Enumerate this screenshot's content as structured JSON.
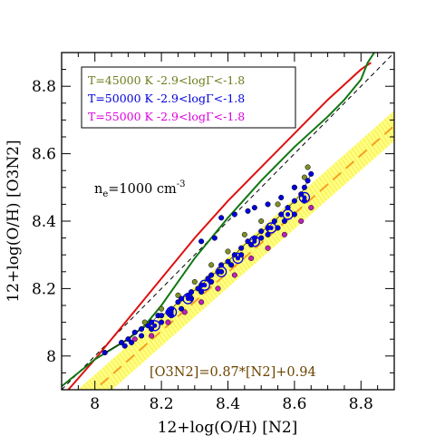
{
  "chart_data": {
    "type": "scatter",
    "title": "",
    "xlabel": "12+log(O/H) [N2]",
    "ylabel": "12+log(O/H) [O3N2]",
    "xlim": [
      7.9,
      8.9
    ],
    "ylim": [
      7.9,
      8.9
    ],
    "x_ticks": [
      "8",
      "8.2",
      "8.4",
      "8.6",
      "8.8"
    ],
    "y_ticks": [
      "8",
      "8.2",
      "8.4",
      "8.6",
      "8.8"
    ],
    "x_tick_values": [
      8.0,
      8.2,
      8.4,
      8.6,
      8.8
    ],
    "y_tick_values": [
      8.0,
      8.2,
      8.4,
      8.6,
      8.8
    ],
    "legend_position": "top-left",
    "legend": [
      {
        "text": "T=45000 K  -2.9<logΓ<-1.8",
        "color": "#6b7d1c"
      },
      {
        "text": "T=50000 K  -2.9<logΓ<-1.8",
        "color": "#0000dd"
      },
      {
        "text": "T=55000 K  -2.9<logΓ<-1.8",
        "color": "#dd00dd"
      }
    ],
    "annotations": {
      "density_prefix": "n",
      "density_sub": "e",
      "density_value": "=1000  cm",
      "density_sup": "-3",
      "fit_label": "[O3N2]=0.87*[N2]+0.94"
    },
    "fit": {
      "slope": 0.87,
      "intercept": 0.94,
      "band_halfwidth": 0.045,
      "color": "#f4a124",
      "band_color": "#ffff66"
    },
    "identity_line": {
      "color": "#000000"
    },
    "red_curve": {
      "color": "#dd1111",
      "points": [
        [
          7.92,
          7.9
        ],
        [
          8.0,
          7.99
        ],
        [
          8.1,
          8.11
        ],
        [
          8.2,
          8.23
        ],
        [
          8.3,
          8.35
        ],
        [
          8.4,
          8.46
        ],
        [
          8.5,
          8.56
        ],
        [
          8.6,
          8.66
        ],
        [
          8.7,
          8.76
        ],
        [
          8.8,
          8.85
        ],
        [
          8.83,
          8.87
        ]
      ]
    },
    "green_curve": {
      "color": "#117711",
      "points": [
        [
          7.9,
          7.91
        ],
        [
          7.95,
          7.95
        ],
        [
          8.0,
          7.99
        ],
        [
          8.1,
          8.05
        ],
        [
          8.15,
          8.09
        ],
        [
          8.2,
          8.15
        ],
        [
          8.25,
          8.22
        ],
        [
          8.3,
          8.29
        ],
        [
          8.4,
          8.41
        ],
        [
          8.5,
          8.52
        ],
        [
          8.6,
          8.62
        ],
        [
          8.7,
          8.71
        ],
        [
          8.75,
          8.76
        ],
        [
          8.8,
          8.82
        ],
        [
          8.82,
          8.87
        ],
        [
          8.84,
          8.9
        ]
      ]
    },
    "series": [
      {
        "name": "T=45000 K",
        "color": "#7d8f2a",
        "points": [
          [
            8.15,
            8.1
          ],
          [
            8.2,
            8.14
          ],
          [
            8.25,
            8.18
          ],
          [
            8.3,
            8.22
          ],
          [
            8.35,
            8.27
          ],
          [
            8.4,
            8.31
          ],
          [
            8.45,
            8.36
          ],
          [
            8.5,
            8.4
          ],
          [
            8.55,
            8.45
          ],
          [
            8.6,
            8.5
          ],
          [
            8.63,
            8.53
          ],
          [
            8.64,
            8.56
          ]
        ]
      },
      {
        "name": "T=50000 K",
        "color": "#0000dd",
        "points": [
          [
            8.03,
            8.01
          ],
          [
            8.08,
            8.04
          ],
          [
            8.1,
            8.05
          ],
          [
            8.12,
            8.07
          ],
          [
            8.14,
            8.08
          ],
          [
            8.16,
            8.09
          ],
          [
            8.17,
            8.1
          ],
          [
            8.19,
            8.12
          ],
          [
            8.2,
            8.12
          ],
          [
            8.22,
            8.13
          ],
          [
            8.23,
            8.14
          ],
          [
            8.25,
            8.16
          ],
          [
            8.26,
            8.17
          ],
          [
            8.28,
            8.18
          ],
          [
            8.29,
            8.19
          ],
          [
            8.31,
            8.2
          ],
          [
            8.32,
            8.21
          ],
          [
            8.34,
            8.23
          ],
          [
            8.35,
            8.24
          ],
          [
            8.37,
            8.25
          ],
          [
            8.38,
            8.27
          ],
          [
            8.4,
            8.28
          ],
          [
            8.42,
            8.3
          ],
          [
            8.44,
            8.32
          ],
          [
            8.46,
            8.34
          ],
          [
            8.48,
            8.35
          ],
          [
            8.5,
            8.37
          ],
          [
            8.52,
            8.38
          ],
          [
            8.54,
            8.4
          ],
          [
            8.56,
            8.42
          ],
          [
            8.58,
            8.44
          ],
          [
            8.6,
            8.46
          ],
          [
            8.62,
            8.48
          ],
          [
            8.63,
            8.5
          ],
          [
            8.64,
            8.52
          ],
          [
            8.65,
            8.54
          ],
          [
            8.63,
            8.46
          ],
          [
            8.6,
            8.42
          ],
          [
            8.57,
            8.4
          ],
          [
            8.55,
            8.38
          ],
          [
            8.52,
            8.36
          ],
          [
            8.5,
            8.35
          ],
          [
            8.47,
            8.33
          ],
          [
            8.44,
            8.3
          ],
          [
            8.41,
            8.27
          ],
          [
            8.38,
            8.25
          ],
          [
            8.35,
            8.22
          ],
          [
            8.32,
            8.19
          ],
          [
            8.29,
            8.17
          ],
          [
            8.26,
            8.14
          ],
          [
            8.23,
            8.12
          ],
          [
            8.2,
            8.1
          ],
          [
            8.17,
            8.08
          ],
          [
            8.14,
            8.06
          ],
          [
            8.11,
            8.04
          ],
          [
            8.09,
            8.03
          ],
          [
            8.48,
            8.44
          ],
          [
            8.52,
            8.45
          ],
          [
            8.56,
            8.47
          ],
          [
            8.6,
            8.5
          ],
          [
            8.38,
            8.41
          ],
          [
            8.42,
            8.42
          ],
          [
            8.46,
            8.43
          ],
          [
            8.32,
            8.34
          ],
          [
            8.36,
            8.35
          ]
        ]
      },
      {
        "name": "T=50000 K circled",
        "color": "#0000dd",
        "points": [
          [
            8.18,
            8.09
          ],
          [
            8.23,
            8.13
          ],
          [
            8.28,
            8.17
          ],
          [
            8.33,
            8.21
          ],
          [
            8.38,
            8.25
          ],
          [
            8.43,
            8.29
          ],
          [
            8.48,
            8.34
          ],
          [
            8.53,
            8.38
          ],
          [
            8.58,
            8.42
          ],
          [
            8.63,
            8.47
          ]
        ]
      },
      {
        "name": "T=55000 K",
        "color": "#bb22bb",
        "points": [
          [
            8.12,
            8.05
          ],
          [
            8.17,
            8.06
          ],
          [
            8.22,
            8.1
          ],
          [
            8.27,
            8.13
          ],
          [
            8.32,
            8.16
          ],
          [
            8.37,
            8.2
          ],
          [
            8.42,
            8.24
          ],
          [
            8.47,
            8.29
          ],
          [
            8.52,
            8.32
          ],
          [
            8.57,
            8.36
          ],
          [
            8.62,
            8.4
          ],
          [
            8.65,
            8.44
          ]
        ]
      }
    ]
  }
}
